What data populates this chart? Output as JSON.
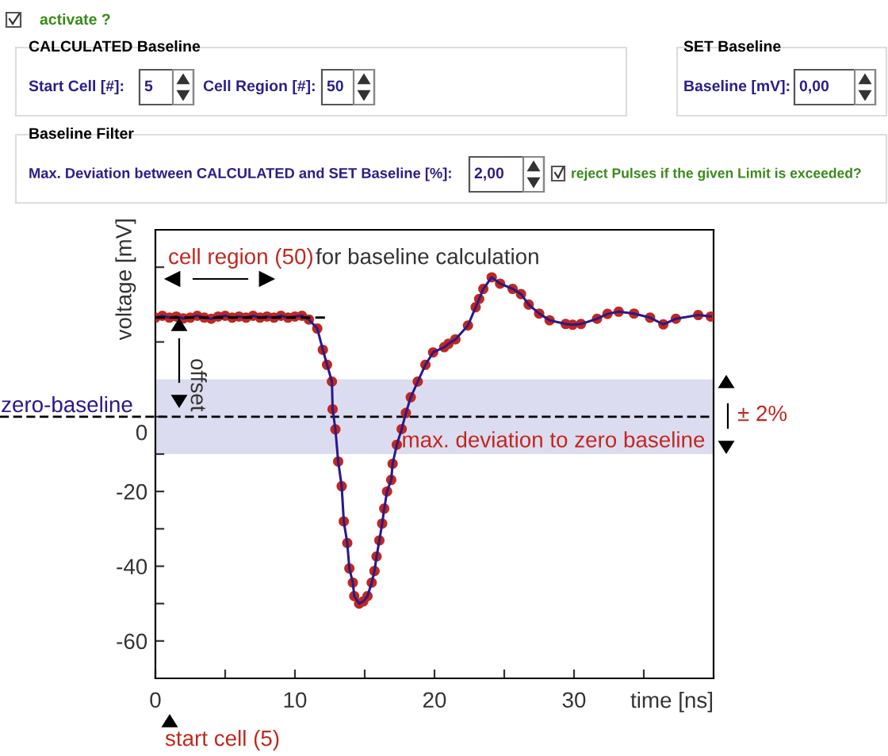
{
  "chart_data": {
    "type": "scatter",
    "xlabel": "time [ns]",
    "ylabel": "voltage [mV]",
    "xlim": [
      0,
      40
    ],
    "xticks": [
      0,
      {
        "value": 5,
        "label": null
      },
      10,
      {
        "value": 15,
        "label": null
      },
      20,
      {
        "value": 25,
        "label": null
      },
      30,
      {
        "value": 35,
        "label": null
      }
    ],
    "ylim": [
      -70,
      50
    ],
    "yticks": [
      -60,
      {
        "value": -50,
        "label": null
      },
      -40,
      {
        "value": -30,
        "label": null
      },
      -20,
      {
        "value": -10,
        "label": null
      },
      0,
      {
        "value": 20,
        "label": null
      },
      {
        "value": 40,
        "label": null
      }
    ],
    "grid": false,
    "legend": false,
    "series": [
      {
        "color": "#c0281e",
        "marker": "circle",
        "x": [
          0,
          0.5,
          1,
          1.5,
          2,
          2.5,
          3,
          3.5,
          4,
          4.5,
          5,
          5.5,
          6,
          6.5,
          7,
          7.5,
          8,
          8.5,
          9,
          9.5,
          10,
          10.5,
          11,
          11.6,
          12.0,
          12.3,
          12.65,
          12.7,
          12.9,
          13.1,
          13.35,
          13.5,
          13.75,
          13.9,
          14.15,
          14.25,
          14.6,
          14.9,
          15.2,
          15.5,
          15.7,
          15.85,
          16.05,
          16.25,
          16.4,
          16.6,
          16.9,
          17.0,
          17.3,
          17.65,
          17.95,
          18.3,
          18.8,
          19.35,
          19.9,
          20.7,
          21.0,
          21.5,
          22.4,
          22.95,
          23.2,
          23.5,
          24.1,
          24.7,
          25.6,
          26.2,
          26.75,
          27.5,
          28.25,
          29.4,
          29.9,
          30.5,
          31.65,
          32.4,
          33.2,
          34.3,
          35.45,
          36.4,
          37.3,
          38.9,
          39.8
        ],
        "values": [
          26.5,
          27,
          26.5,
          26.8,
          26.3,
          26.5,
          27,
          26.5,
          26.2,
          26.8,
          27,
          26.5,
          26.8,
          26.5,
          27,
          26.5,
          26.8,
          26.5,
          27,
          26.5,
          26.8,
          27,
          26,
          23.6,
          17.9,
          13.9,
          9.4,
          2,
          -3.4,
          -12,
          -18.6,
          -28,
          -33.8,
          -40.6,
          -44.4,
          -48,
          -50,
          -49.4,
          -48,
          -44.4,
          -41.3,
          -37.4,
          -33.1,
          -28.6,
          -24.6,
          -20,
          -16.9,
          -12.6,
          -7.5,
          -3.3,
          1,
          5.2,
          9.4,
          13.9,
          17.2,
          18.6,
          19.5,
          20.7,
          24.4,
          29.3,
          31.5,
          34.2,
          37.3,
          35.6,
          34.2,
          32.8,
          30,
          27.6,
          25.8,
          24.8,
          24.6,
          24.8,
          26.2,
          27.5,
          28.1,
          27.6,
          26.5,
          24.7,
          26.2,
          27.2,
          26.8
        ]
      },
      {
        "type": "line",
        "color": "#2a1a8a",
        "marker": "none",
        "line_style": "solid",
        "x": [
          0,
          0.5,
          1,
          1.5,
          2,
          2.5,
          3,
          3.5,
          4,
          4.5,
          5,
          5.5,
          6,
          6.5,
          7,
          7.5,
          8,
          8.5,
          9,
          9.5,
          10,
          10.5,
          11,
          11.6,
          12.0,
          12.3,
          12.65,
          12.7,
          12.9,
          13.1,
          13.35,
          13.5,
          13.75,
          13.9,
          14.15,
          14.25,
          14.6,
          14.9,
          15.2,
          15.5,
          15.7,
          15.85,
          16.05,
          16.25,
          16.4,
          16.6,
          16.9,
          17.0,
          17.3,
          17.65,
          17.95,
          18.3,
          18.8,
          19.35,
          19.9,
          20.7,
          21.0,
          21.5,
          22.4,
          22.95,
          23.2,
          23.5,
          24.1,
          24.7,
          25.6,
          26.2,
          26.75,
          27.5,
          28.25,
          29.4,
          29.9,
          30.5,
          31.65,
          32.4,
          33.2,
          34.3,
          35.45,
          36.4,
          37.3,
          38.9,
          39.8
        ],
        "values": [
          26.5,
          27,
          26.5,
          26.8,
          26.3,
          26.5,
          27,
          26.5,
          26.2,
          26.8,
          27,
          26.5,
          26.8,
          26.5,
          27,
          26.5,
          26.8,
          26.5,
          27,
          26.5,
          26.8,
          27,
          26,
          23.6,
          17.9,
          13.9,
          9.4,
          2,
          -3.4,
          -12,
          -18.6,
          -28,
          -33.8,
          -40.6,
          -44.4,
          -48,
          -50,
          -49.4,
          -48,
          -44.4,
          -41.3,
          -37.4,
          -33.1,
          -28.6,
          -24.6,
          -20,
          -16.9,
          -12.6,
          -7.5,
          -3.3,
          1,
          5.2,
          9.4,
          13.9,
          17.2,
          18.6,
          19.5,
          20.7,
          24.4,
          29.3,
          31.5,
          34.2,
          37.3,
          35.6,
          34.2,
          32.8,
          30,
          27.6,
          25.8,
          24.8,
          24.6,
          24.8,
          26.2,
          27.5,
          28.1,
          27.6,
          26.5,
          24.7,
          26.2,
          27.2,
          26.8
        ]
      },
      {
        "type": "line",
        "color": "#000000",
        "marker": "none",
        "line_style": "dashed",
        "x": [
          0,
          12.4
        ],
        "values": [
          26.5,
          26.5
        ]
      }
    ],
    "ref_lines": [
      {
        "axis": "y",
        "value": 0,
        "label": "zero-baseline",
        "color": "#000000",
        "line_style": "dashed"
      }
    ],
    "bands": [
      {
        "axis": "y",
        "from": -10,
        "to": 10,
        "label": "max. deviation to zero baseline",
        "color": "#dcdcf0"
      }
    ],
    "annotations": [
      "cell region (50)",
      "for baseline calculation",
      "offset",
      "± 2%",
      "start cell (5)",
      "activate ?",
      "CALCULATED Baseline",
      "Start Cell [#]:",
      "5",
      "Cell Region [#]:",
      "50",
      "SET Baseline",
      "Baseline [mV]:",
      "0,00",
      "Baseline Filter",
      "Max. Deviation between CALCULATED and SET Baseline [%]:",
      "2,00",
      "reject Pulses if the given Limit is exceeded?"
    ]
  }
}
